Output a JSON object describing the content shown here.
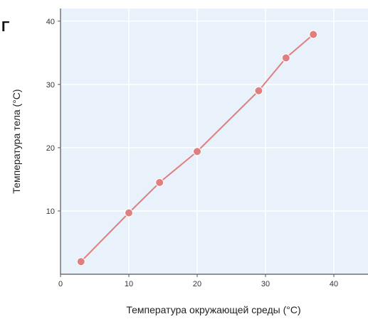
{
  "panel_letter": "Г",
  "colors": {
    "plot_background": "#e9f2fa",
    "grid": "#ffffff",
    "axis": "#555555",
    "series": "#e07f7f"
  },
  "chart_data": {
    "type": "line",
    "xlabel": "Температура окружающей среды (°C)",
    "ylabel": "Температура тела (°C)",
    "xlim": [
      0,
      45
    ],
    "ylim": [
      0,
      42
    ],
    "xticks": [
      0,
      10,
      20,
      30,
      40
    ],
    "yticks": [
      10,
      20,
      30,
      40
    ],
    "grid": true,
    "series": [
      {
        "x": [
          3,
          10,
          14.5,
          20,
          29,
          33,
          37
        ],
        "y": [
          2,
          9.7,
          14.5,
          19.4,
          29,
          34.2,
          37.9
        ]
      }
    ]
  }
}
